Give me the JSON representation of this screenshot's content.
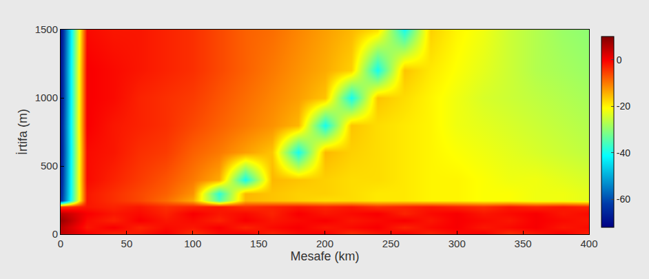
{
  "chart_data": {
    "type": "heatmap",
    "xlabel": "Mesafe (km)",
    "ylabel": "İrtifa (m)",
    "x": [
      0,
      20,
      40,
      60,
      80,
      100,
      120,
      140,
      160,
      180,
      200,
      220,
      240,
      260,
      280,
      300,
      320,
      340,
      360,
      380,
      400
    ],
    "y": [
      0,
      50,
      100,
      150,
      200,
      250,
      300,
      400,
      600,
      800,
      1000,
      1200,
      1500
    ],
    "z": [
      [
        5,
        0,
        -3,
        -2,
        0,
        -4,
        -1,
        0,
        -3,
        -1,
        0,
        -4,
        -2,
        0,
        -3,
        -1,
        0,
        -4,
        -2,
        0,
        -3
      ],
      [
        5,
        -2,
        0,
        -3,
        -1,
        -2,
        0,
        -3,
        -1,
        0,
        -2,
        -1,
        0,
        -3,
        -1,
        0,
        -2,
        -1,
        0,
        -2,
        -1
      ],
      [
        8,
        -1,
        -3,
        0,
        -2,
        -1,
        -3,
        0,
        -2,
        -1,
        0,
        -2,
        -1,
        0,
        -2,
        0,
        -1,
        -2,
        0,
        -1,
        -2
      ],
      [
        5,
        0,
        -2,
        -1,
        -3,
        0,
        -2,
        -1,
        -3,
        0,
        -2,
        -1,
        0,
        -3,
        -1,
        0,
        -2,
        -1,
        0,
        -2,
        -1
      ],
      [
        -5,
        -2,
        -3,
        -2,
        -4,
        -3,
        -2,
        -4,
        -3,
        -2,
        -3,
        -2,
        -4,
        -3,
        -2,
        -3,
        -4,
        -2,
        -3,
        -2,
        -3
      ],
      [
        -65,
        -2,
        -4,
        -6,
        -9,
        -14,
        -35,
        -15,
        -16,
        -17,
        -18,
        -18,
        -19,
        -19,
        -20,
        -20,
        -21,
        -21,
        -22,
        -22,
        -23
      ],
      [
        -66,
        -2,
        -4,
        -6,
        -8,
        -12,
        -38,
        -15,
        -16,
        -17,
        -17,
        -18,
        -19,
        -19,
        -20,
        -20,
        -21,
        -21,
        -22,
        -22,
        -23
      ],
      [
        -67,
        -1,
        -3,
        -5,
        -7,
        -10,
        -14,
        -40,
        -15,
        -16,
        -17,
        -18,
        -18,
        -19,
        -20,
        -20,
        -21,
        -22,
        -22,
        -23,
        -24
      ],
      [
        -68,
        -1,
        -2,
        -4,
        -5,
        -8,
        -10,
        -13,
        -16,
        -40,
        -15,
        -17,
        -18,
        -19,
        -20,
        -21,
        -22,
        -23,
        -24,
        -25,
        -26
      ],
      [
        -68,
        0,
        -2,
        -3,
        -4,
        -6,
        -8,
        -10,
        -12,
        -15,
        -40,
        -16,
        -18,
        -19,
        -20,
        -22,
        -23,
        -24,
        -25,
        -26,
        -27
      ],
      [
        -69,
        0,
        -1,
        -3,
        -4,
        -5,
        -7,
        -9,
        -11,
        -13,
        -16,
        -40,
        -16,
        -18,
        -20,
        -22,
        -24,
        -25,
        -26,
        -27,
        -28
      ],
      [
        -69,
        0,
        -1,
        -2,
        -3,
        -4,
        -6,
        -8,
        -10,
        -12,
        -14,
        -17,
        -40,
        -16,
        -19,
        -21,
        -23,
        -25,
        -27,
        -28,
        -29
      ],
      [
        -70,
        -1,
        -2,
        -2,
        -3,
        -4,
        -6,
        -8,
        -9,
        -11,
        -13,
        -15,
        -18,
        -40,
        -17,
        -20,
        -22,
        -25,
        -27,
        -29,
        -30
      ]
    ],
    "xlim": [
      0,
      400
    ],
    "xticks": [
      0,
      50,
      100,
      150,
      200,
      250,
      300,
      350,
      400
    ],
    "ylim": [
      0,
      1500
    ],
    "yticks": [
      0,
      500,
      1000,
      1500
    ],
    "colorbar_range": [
      -72,
      10
    ],
    "colorbar_ticks": [
      0,
      -20,
      -40,
      -60
    ],
    "grid": false
  }
}
